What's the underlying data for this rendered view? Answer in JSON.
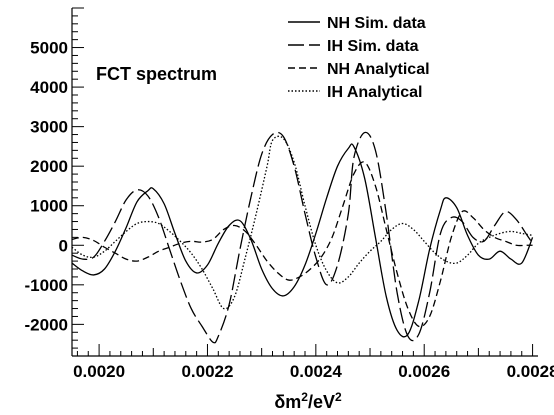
{
  "chart_data": {
    "type": "line",
    "title": "",
    "annotation": "FCT spectrum",
    "xlabel": {
      "prefix": "δm",
      "sup1": "2",
      "mid": "/eV",
      "sup2": "2"
    },
    "ylabel": "",
    "xlim": [
      0.00195,
      0.00281
    ],
    "ylim": [
      -2800,
      6000
    ],
    "x_ticks": [
      0.002,
      0.0022,
      0.0024,
      0.0026,
      0.0028
    ],
    "x_tick_labels": [
      "0.0020",
      "0.0022",
      "0.0024",
      "0.0026",
      "0.0028"
    ],
    "y_ticks": [
      -2000,
      -1000,
      0,
      1000,
      2000,
      3000,
      4000,
      5000
    ],
    "y_tick_labels": [
      "-2000",
      "-1000",
      "0",
      "1000",
      "2000",
      "3000",
      "4000",
      "5000"
    ],
    "grid": false,
    "legend_position": "top-right",
    "series": [
      {
        "name": "NH Sim. data",
        "dash": "solid",
        "x": [
          0.00195,
          0.00197,
          0.00199,
          0.00201,
          0.00203,
          0.00205,
          0.00207,
          0.00209,
          0.0021,
          0.00212,
          0.00214,
          0.00216,
          0.00218,
          0.0022,
          0.00222,
          0.00224,
          0.00226,
          0.00228,
          0.0023,
          0.00232,
          0.00234,
          0.00236,
          0.00238,
          0.0024,
          0.00242,
          0.00244,
          0.00246,
          0.00247,
          0.00249,
          0.00251,
          0.00253,
          0.00255,
          0.00257,
          0.00259,
          0.00261,
          0.00263,
          0.00264,
          0.00266,
          0.00268,
          0.0027,
          0.00272,
          0.00274,
          0.00276,
          0.00278,
          0.0028
        ],
        "y": [
          -450,
          -650,
          -750,
          -600,
          -150,
          450,
          1100,
          1380,
          1430,
          1050,
          300,
          -400,
          -700,
          -500,
          50,
          500,
          620,
          150,
          -600,
          -1100,
          -1280,
          -1050,
          -500,
          300,
          1200,
          2000,
          2450,
          2500,
          1700,
          200,
          -1300,
          -2150,
          -2250,
          -1400,
          -100,
          900,
          1200,
          950,
          250,
          -250,
          -350,
          -150,
          -350,
          -450,
          200
        ]
      },
      {
        "name": "IH Sim. data",
        "dash": "long-dash",
        "x": [
          0.00195,
          0.00197,
          0.00199,
          0.00201,
          0.00203,
          0.00205,
          0.00207,
          0.00209,
          0.00211,
          0.00213,
          0.00215,
          0.00217,
          0.00219,
          0.00221,
          0.00222,
          0.00224,
          0.00226,
          0.00228,
          0.0023,
          0.00232,
          0.00234,
          0.00236,
          0.00238,
          0.0024,
          0.00242,
          0.00244,
          0.00246,
          0.00247,
          0.00249,
          0.00251,
          0.00253,
          0.00255,
          0.00257,
          0.00259,
          0.00261,
          0.00263,
          0.00265,
          0.00267,
          0.00269,
          0.00271,
          0.00273,
          0.00275,
          0.00277,
          0.00279,
          0.0028
        ],
        "y": [
          -250,
          -350,
          -300,
          100,
          600,
          1150,
          1400,
          1250,
          700,
          -100,
          -900,
          -1600,
          -2050,
          -2450,
          -2300,
          -1500,
          -100,
          1200,
          2300,
          2800,
          2750,
          2000,
          800,
          -300,
          -1000,
          -500,
          800,
          2200,
          2850,
          2400,
          800,
          -1200,
          -2300,
          -2250,
          -1200,
          300,
          700,
          600,
          200,
          100,
          500,
          850,
          650,
          250,
          50
        ]
      },
      {
        "name": "NH Analytical",
        "dash": "short-dash",
        "x": [
          0.00195,
          0.00197,
          0.00199,
          0.00201,
          0.00203,
          0.00205,
          0.00207,
          0.00209,
          0.00211,
          0.00213,
          0.00215,
          0.00217,
          0.00219,
          0.00221,
          0.00223,
          0.00225,
          0.00227,
          0.00229,
          0.00231,
          0.00233,
          0.00235,
          0.00237,
          0.00239,
          0.00241,
          0.00243,
          0.00245,
          0.00247,
          0.00249,
          0.00251,
          0.00253,
          0.00255,
          0.00257,
          0.00259,
          0.00261,
          0.00263,
          0.00265,
          0.00267,
          0.00269,
          0.00271,
          0.00273,
          0.00275,
          0.00277,
          0.00279,
          0.0028
        ],
        "y": [
          150,
          200,
          120,
          -50,
          -200,
          -350,
          -400,
          -300,
          -150,
          -50,
          50,
          100,
          80,
          150,
          400,
          500,
          350,
          0,
          -400,
          -700,
          -880,
          -800,
          -600,
          -300,
          200,
          1000,
          1800,
          2100,
          1500,
          400,
          -700,
          -1600,
          -2050,
          -1800,
          -900,
          200,
          850,
          700,
          400,
          200,
          100,
          0,
          0,
          0
        ]
      },
      {
        "name": "IH Analytical",
        "dash": "dotted",
        "x": [
          0.00195,
          0.00197,
          0.00199,
          0.00201,
          0.00203,
          0.00205,
          0.00207,
          0.00209,
          0.00211,
          0.00213,
          0.00215,
          0.00217,
          0.00219,
          0.00221,
          0.00223,
          0.00225,
          0.00227,
          0.00229,
          0.00231,
          0.00232,
          0.00234,
          0.00236,
          0.00238,
          0.0024,
          0.00242,
          0.00244,
          0.00246,
          0.00248,
          0.0025,
          0.00252,
          0.00254,
          0.00256,
          0.00258,
          0.0026,
          0.00262,
          0.00264,
          0.00266,
          0.00268,
          0.0027,
          0.00272,
          0.00274,
          0.00276,
          0.00278,
          0.0028
        ],
        "y": [
          -50,
          -250,
          -300,
          -150,
          100,
          350,
          550,
          600,
          550,
          350,
          100,
          -200,
          -600,
          -1100,
          -1600,
          -1300,
          -300,
          800,
          2000,
          2650,
          2700,
          2100,
          1000,
          0,
          -650,
          -950,
          -800,
          -450,
          -150,
          100,
          400,
          550,
          400,
          100,
          -200,
          -400,
          -450,
          -250,
          50,
          200,
          300,
          350,
          300,
          250
        ]
      }
    ]
  }
}
